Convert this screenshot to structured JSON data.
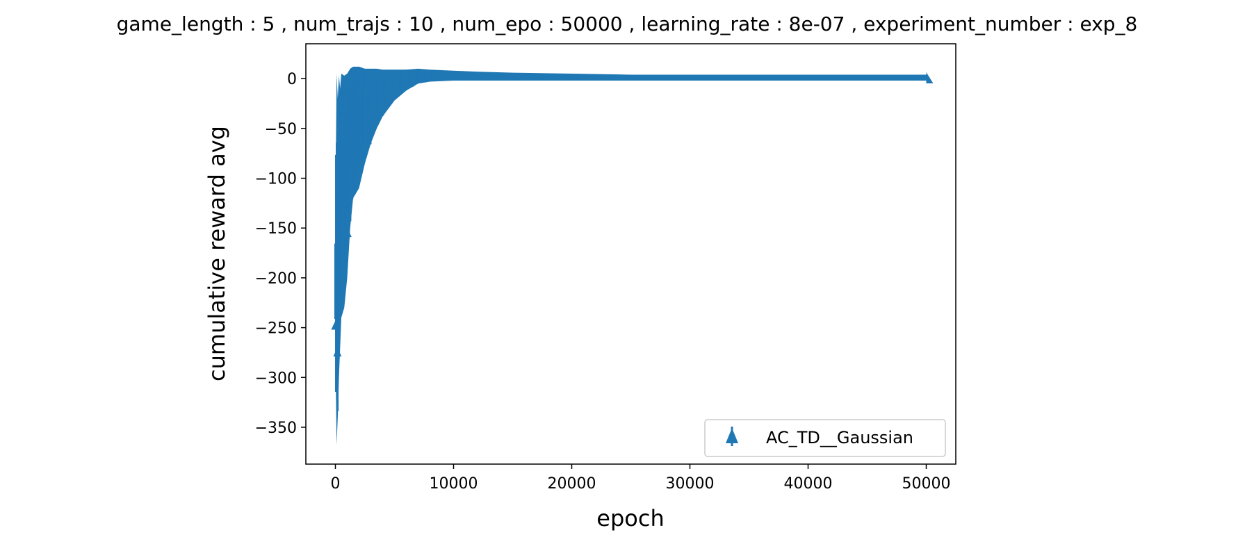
{
  "chart_data": {
    "type": "line",
    "title": "game_length : 5 , num_trajs : 10 , num_epo : 50000 , learning_rate : 8e-07 , experiment_number : exp_8",
    "xlabel": "epoch",
    "ylabel": "cumulative reward avg",
    "xlim": [
      -2500,
      52500
    ],
    "ylim": [
      -387,
      35
    ],
    "xticks": [
      0,
      10000,
      20000,
      30000,
      40000,
      50000
    ],
    "xtick_labels": [
      "0",
      "10000",
      "20000",
      "30000",
      "40000",
      "50000"
    ],
    "yticks": [
      0,
      -50,
      -100,
      -150,
      -200,
      -250,
      -300,
      -350
    ],
    "ytick_labels": [
      "0",
      "−50",
      "−100",
      "−150",
      "−200",
      "−250",
      "−300",
      "−350"
    ],
    "grid": false,
    "legend": {
      "entries": [
        "AC_TD__Gaussian"
      ],
      "position": "lower-right"
    },
    "series": [
      {
        "name": "AC_TD__Gaussian",
        "color": "#1f77b4",
        "marker": "errorbar-uplims",
        "x": [
          0,
          100,
          200,
          300,
          400,
          500,
          750,
          1000,
          1250,
          1500,
          2000,
          2500,
          3000,
          3500,
          4000,
          5000,
          6000,
          7000,
          8000,
          10000,
          12000,
          15000,
          20000,
          25000,
          30000,
          35000,
          40000,
          45000,
          50000
        ],
        "y_low": [
          -270,
          -368,
          -340,
          -300,
          -270,
          -240,
          -230,
          -200,
          -150,
          -120,
          -110,
          -85,
          -65,
          -50,
          -38,
          -22,
          -12,
          -5,
          -3,
          -2,
          -2,
          -2,
          -2,
          -2,
          -2,
          -2,
          -2,
          -2,
          -2
        ],
        "y_high": [
          -140,
          5,
          -20,
          3,
          -10,
          5,
          3,
          5,
          10,
          12,
          12,
          10,
          10,
          10,
          9,
          9,
          9,
          10,
          9,
          8,
          7,
          6,
          5,
          4,
          4,
          4,
          4,
          4,
          4
        ]
      }
    ]
  }
}
